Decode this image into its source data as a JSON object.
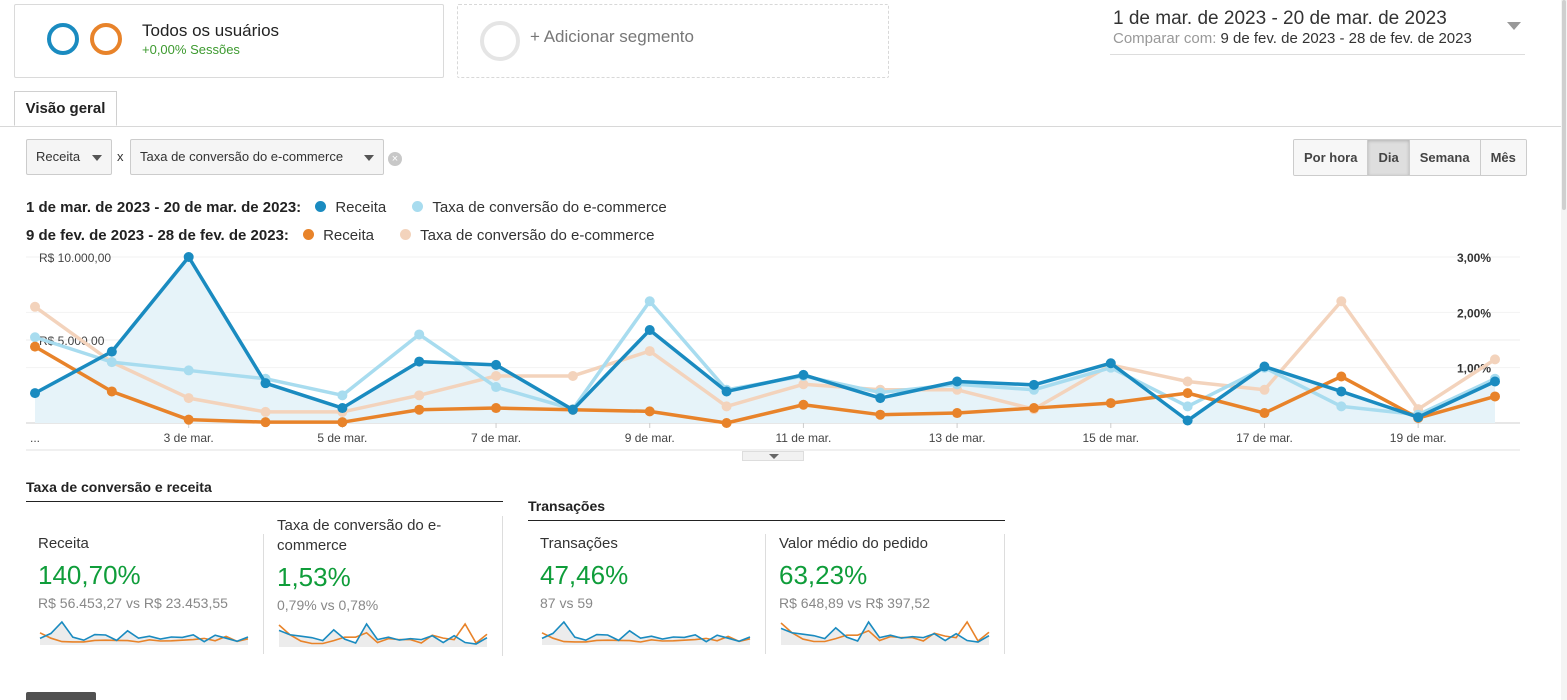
{
  "segment": {
    "title": "Todos os usuários",
    "subtitle": "+0,00% Sessões",
    "add_label": "+ Adicionar segmento"
  },
  "date_range": {
    "main": "1 de mar. de 2023 - 20 de mar. de 2023",
    "compare_label": "Comparar com:",
    "compare_value": "9 de fev. de 2023 - 28 de fev. de 2023"
  },
  "tabs": [
    {
      "label": "Visão geral"
    }
  ],
  "controls": {
    "metric1": "Receita",
    "x_label": "x",
    "metric2": "Taxa de conversão do e-commerce",
    "granularity": [
      "Por hora",
      "Dia",
      "Semana",
      "Mês"
    ],
    "granularity_active": "Dia"
  },
  "legend": {
    "row1_period": "1 de mar. de 2023 - 20 de mar. de 2023:",
    "row2_period": "9 de fev. de 2023 - 28 de fev. de 2023:",
    "receita": "Receita",
    "taxa": "Taxa de conversão do e-commerce"
  },
  "colors": {
    "cur_revenue": "#1a8bc0",
    "cur_rate": "#a8dcef",
    "prev_revenue": "#e8832a",
    "prev_rate": "#f3d3bc",
    "positive": "#0f9d3a"
  },
  "chart_data": {
    "type": "line",
    "x": [
      "1 mar",
      "2 mar",
      "3 mar",
      "4 mar",
      "5 mar",
      "6 mar",
      "7 mar",
      "8 mar",
      "9 mar",
      "10 mar",
      "11 mar",
      "12 mar",
      "13 mar",
      "14 mar",
      "15 mar",
      "16 mar",
      "17 mar",
      "18 mar",
      "19 mar",
      "20 mar"
    ],
    "x_tick_labels": [
      "...",
      "3 de mar.",
      "5 de mar.",
      "7 de mar.",
      "9 de mar.",
      "11 de mar.",
      "13 de mar.",
      "15 de mar.",
      "17 de mar.",
      "19 de mar."
    ],
    "y_left_ticks": [
      "R$ 10.000,00",
      "R$ 5.000,00"
    ],
    "y_right_ticks": [
      "3,00%",
      "2,00%",
      "1,00%"
    ],
    "y_left_lim": [
      0,
      10000
    ],
    "y_right_lim": [
      0,
      3
    ],
    "series": [
      {
        "name": "Receita",
        "period": "1 de mar. de 2023 - 20 de mar. de 2023",
        "axis": "left",
        "values": [
          1800,
          4300,
          10000,
          2400,
          900,
          3700,
          3500,
          800,
          5600,
          1900,
          2900,
          1500,
          2500,
          2300,
          3600,
          150,
          3400,
          1900,
          350,
          2500
        ]
      },
      {
        "name": "Taxa de conversão do e-commerce",
        "period": "1 de mar. de 2023 - 20 de mar. de 2023",
        "axis": "right",
        "values": [
          1.55,
          1.1,
          0.95,
          0.8,
          0.5,
          1.6,
          0.65,
          0.25,
          2.2,
          0.6,
          0.85,
          0.55,
          0.7,
          0.6,
          1.0,
          0.3,
          1.0,
          0.3,
          0.15,
          0.8
        ]
      },
      {
        "name": "Receita",
        "period": "9 de fev. de 2023 - 28 de fev. de 2023",
        "axis": "left",
        "values": [
          4600,
          1900,
          200,
          50,
          50,
          800,
          900,
          800,
          700,
          0,
          1100,
          500,
          600,
          900,
          1200,
          1800,
          600,
          2800,
          300,
          1600
        ]
      },
      {
        "name": "Taxa de conversão do e-commerce",
        "period": "9 de fev. de 2023 - 28 de fev. de 2023",
        "axis": "right",
        "values": [
          2.1,
          1.1,
          0.45,
          0.2,
          0.2,
          0.5,
          0.85,
          0.85,
          1.3,
          0.3,
          0.7,
          0.6,
          0.6,
          0.25,
          1.05,
          0.75,
          0.6,
          2.2,
          0.25,
          1.15
        ]
      }
    ],
    "grid": true
  },
  "summary": {
    "section1_title": "Taxa de conversão e receita",
    "section2_title": "Transações",
    "metrics": [
      {
        "label": "Receita",
        "pct": "140,70%",
        "cmp": "R$ 56.453,27 vs R$ 23.453,55"
      },
      {
        "label": "Taxa de conversão do e-commerce",
        "pct": "1,53%",
        "cmp": "0,79% vs 0,78%"
      },
      {
        "label": "Transações",
        "pct": "47,46%",
        "cmp": "87 vs 59"
      },
      {
        "label": "Valor médio do pedido",
        "pct": "63,23%",
        "cmp": "R$ 648,89 vs R$ 397,52"
      }
    ]
  }
}
